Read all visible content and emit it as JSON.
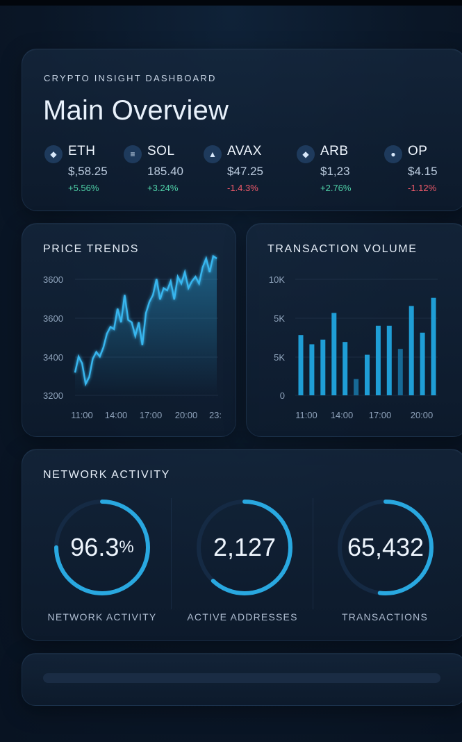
{
  "header": {
    "eyebrow": "CRYPTO INSIGHT DASHBOARD",
    "title": "Main Overview"
  },
  "coins": [
    {
      "symbol": "ETH",
      "price": "$,58.25",
      "change": "+5.56%",
      "trend": "up",
      "icon": "eth-icon"
    },
    {
      "symbol": "SOL",
      "price": "185.40",
      "change": "+3.24%",
      "trend": "up",
      "icon": "sol-icon"
    },
    {
      "symbol": "AVAX",
      "price": "$47.25",
      "change": "-1.4.3%",
      "trend": "down",
      "icon": "avax-icon"
    },
    {
      "symbol": "ARB",
      "price": "$1,23",
      "change": "+2.76%",
      "trend": "up",
      "icon": "arb-icon"
    },
    {
      "symbol": "OP",
      "price": "$4.15",
      "change": "-1.12%",
      "trend": "down",
      "icon": "op-icon"
    }
  ],
  "price_trends": {
    "title": "PRICE TRENDS",
    "y_ticks": [
      "3600",
      "3600",
      "3400",
      "3200"
    ],
    "x_ticks": [
      "11:00",
      "14:00",
      "17:00",
      "20:00",
      "23:"
    ]
  },
  "transaction_volume": {
    "title": "TRANSACTION VOLUME",
    "y_ticks": [
      "10K",
      "5K",
      "5K",
      "0"
    ],
    "x_ticks": [
      "11:00",
      "14:00",
      "17:00",
      "20:00"
    ]
  },
  "chart_data": [
    {
      "type": "area",
      "title": "PRICE TRENDS",
      "ylim": [
        3200,
        3800
      ],
      "grid": true,
      "x": [
        0,
        1,
        2,
        3,
        4,
        5,
        6,
        7,
        8,
        9,
        10,
        11,
        12,
        13,
        14,
        15,
        16,
        17,
        18,
        19,
        20,
        21,
        22,
        23,
        24,
        25,
        26,
        27,
        28,
        29,
        30,
        31,
        32,
        33,
        34,
        35,
        36,
        37,
        38,
        39,
        40
      ],
      "values": [
        3300,
        3370,
        3340,
        3250,
        3280,
        3360,
        3390,
        3370,
        3410,
        3470,
        3500,
        3490,
        3580,
        3520,
        3640,
        3530,
        3520,
        3460,
        3520,
        3420,
        3560,
        3610,
        3640,
        3710,
        3620,
        3670,
        3660,
        3700,
        3620,
        3720,
        3690,
        3740,
        3670,
        3700,
        3720,
        3690,
        3760,
        3800,
        3740,
        3810,
        3800
      ]
    },
    {
      "type": "bar",
      "title": "TRANSACTION VOLUME",
      "ylim": [
        0,
        10000
      ],
      "grid": true,
      "values": [
        5200,
        4400,
        4800,
        7100,
        4600,
        1400,
        3500,
        6000,
        6000,
        4000,
        7700,
        5400,
        8400
      ],
      "highlight": [
        true,
        true,
        true,
        true,
        true,
        false,
        true,
        true,
        true,
        false,
        true,
        true,
        true
      ]
    }
  ],
  "network": {
    "title": "NETWORK ACTIVITY",
    "gauges": [
      {
        "value": "96.3",
        "unit": "%",
        "label": "NETWORK ACTIVITY",
        "fill": 0.75
      },
      {
        "value": "2,127",
        "unit": "",
        "label": "ACTIVE ADDRESSES",
        "fill": 0.62
      },
      {
        "value": "65,432",
        "unit": "",
        "label": "TRANSACTIONS",
        "fill": 0.52
      }
    ]
  },
  "colors": {
    "accent": "#29a8e0",
    "positive": "#4fd1a8",
    "negative": "#f05a6a"
  }
}
